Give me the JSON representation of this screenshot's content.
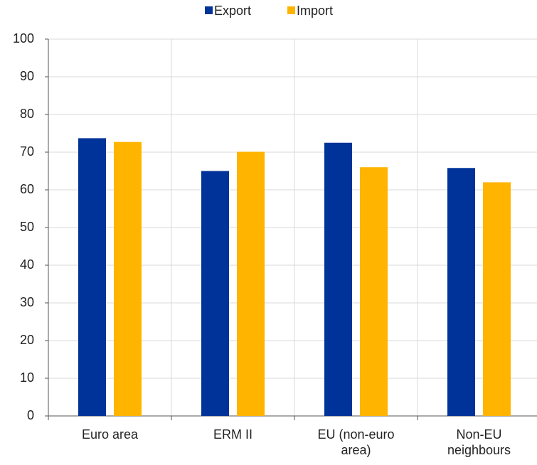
{
  "chart_data": {
    "type": "bar",
    "categories": [
      "Euro area",
      "ERM II",
      "EU (non-euro area)",
      "Non-EU neighbours"
    ],
    "series": [
      {
        "name": "Export",
        "color": "#003399",
        "values": [
          73.7,
          65.0,
          72.5,
          65.8
        ]
      },
      {
        "name": "Import",
        "color": "#ffb400",
        "values": [
          72.7,
          70.1,
          66.0,
          62.0
        ]
      }
    ],
    "ylim": [
      0,
      100
    ],
    "yticks": [
      0,
      10,
      20,
      30,
      40,
      50,
      60,
      70,
      80,
      90,
      100
    ],
    "grid": true,
    "legend": "top"
  }
}
